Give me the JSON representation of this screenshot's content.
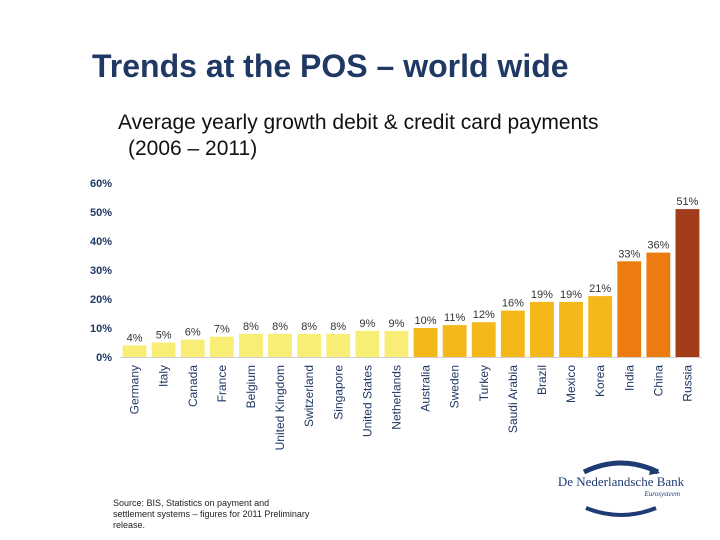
{
  "slide": {
    "title": "Trends at the POS – world wide",
    "subtitle_line1": "Average yearly growth debit & credit card payments",
    "subtitle_line2": "(2006 – 2011)",
    "source": "Source: BIS, Statistics on payment and settlement systems – figures for 2011 Preliminary release."
  },
  "logo": {
    "name": "De Nederlandsche Bank",
    "tagline": "Eurosysteem",
    "icon": "dnb-swirl-logo"
  },
  "colors": {
    "low": "#f8ee76",
    "mid": "#f5b81a",
    "high": "#ec7c10",
    "top": "#a13d1b",
    "axis": "#1f3864"
  },
  "chart_data": {
    "type": "bar",
    "categories": [
      "Germany",
      "Italy",
      "Canada",
      "France",
      "Belgium",
      "United Kingdom",
      "Switzerland",
      "Singapore",
      "United States",
      "Netherlands",
      "Australia",
      "Sweden",
      "Turkey",
      "Saudi Arabia",
      "Brazil",
      "Mexico",
      "Korea",
      "India",
      "China",
      "Russia"
    ],
    "values": [
      4,
      5,
      6,
      7,
      8,
      8,
      8,
      8,
      9,
      9,
      10,
      11,
      12,
      16,
      19,
      19,
      21,
      33,
      36,
      51
    ],
    "value_labels": [
      "4%",
      "5%",
      "6%",
      "7%",
      "8%",
      "8%",
      "8%",
      "8%",
      "9%",
      "9%",
      "10%",
      "11%",
      "12%",
      "16%",
      "19%",
      "19%",
      "21%",
      "33%",
      "36%",
      "51%"
    ],
    "y_ticks": [
      "0%",
      "10%",
      "20%",
      "30%",
      "40%",
      "50%",
      "60%"
    ],
    "ylim": [
      0,
      60
    ],
    "grid": false,
    "legend": "none",
    "bar_color_groups": [
      "low",
      "low",
      "low",
      "low",
      "low",
      "low",
      "low",
      "low",
      "low",
      "low",
      "mid",
      "mid",
      "mid",
      "mid",
      "mid",
      "mid",
      "mid",
      "high",
      "high",
      "top"
    ]
  }
}
